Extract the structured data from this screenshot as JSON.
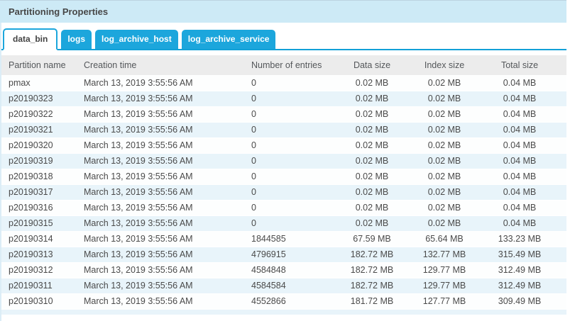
{
  "panel": {
    "title": "Partitioning Properties"
  },
  "tabs": [
    {
      "label": "data_bin",
      "active": true
    },
    {
      "label": "logs",
      "active": false
    },
    {
      "label": "log_archive_host",
      "active": false
    },
    {
      "label": "log_archive_service",
      "active": false
    }
  ],
  "table": {
    "columns": [
      "Partition name",
      "Creation time",
      "Number of entries",
      "Data size",
      "Index size",
      "Total size"
    ],
    "column_keys": [
      "partition-name",
      "creation-time",
      "number-of-entries",
      "data-size",
      "index-size",
      "total-size"
    ],
    "rows": [
      [
        "pmax",
        "March 13, 2019 3:55:56 AM",
        "0",
        "0.02 MB",
        "0.02 MB",
        "0.04 MB"
      ],
      [
        "p20190323",
        "March 13, 2019 3:55:56 AM",
        "0",
        "0.02 MB",
        "0.02 MB",
        "0.04 MB"
      ],
      [
        "p20190322",
        "March 13, 2019 3:55:56 AM",
        "0",
        "0.02 MB",
        "0.02 MB",
        "0.04 MB"
      ],
      [
        "p20190321",
        "March 13, 2019 3:55:56 AM",
        "0",
        "0.02 MB",
        "0.02 MB",
        "0.04 MB"
      ],
      [
        "p20190320",
        "March 13, 2019 3:55:56 AM",
        "0",
        "0.02 MB",
        "0.02 MB",
        "0.04 MB"
      ],
      [
        "p20190319",
        "March 13, 2019 3:55:56 AM",
        "0",
        "0.02 MB",
        "0.02 MB",
        "0.04 MB"
      ],
      [
        "p20190318",
        "March 13, 2019 3:55:56 AM",
        "0",
        "0.02 MB",
        "0.02 MB",
        "0.04 MB"
      ],
      [
        "p20190317",
        "March 13, 2019 3:55:56 AM",
        "0",
        "0.02 MB",
        "0.02 MB",
        "0.04 MB"
      ],
      [
        "p20190316",
        "March 13, 2019 3:55:56 AM",
        "0",
        "0.02 MB",
        "0.02 MB",
        "0.04 MB"
      ],
      [
        "p20190315",
        "March 13, 2019 3:55:56 AM",
        "0",
        "0.02 MB",
        "0.02 MB",
        "0.04 MB"
      ],
      [
        "p20190314",
        "March 13, 2019 3:55:56 AM",
        "1844585",
        "67.59 MB",
        "65.64 MB",
        "133.23 MB"
      ],
      [
        "p20190313",
        "March 13, 2019 3:55:56 AM",
        "4796915",
        "182.72 MB",
        "132.77 MB",
        "315.49 MB"
      ],
      [
        "p20190312",
        "March 13, 2019 3:55:56 AM",
        "4584848",
        "182.72 MB",
        "129.77 MB",
        "312.49 MB"
      ],
      [
        "p20190311",
        "March 13, 2019 3:55:56 AM",
        "4584584",
        "182.72 MB",
        "129.77 MB",
        "312.49 MB"
      ],
      [
        "p20190310",
        "March 13, 2019 3:55:56 AM",
        "4552866",
        "181.72 MB",
        "127.77 MB",
        "309.49 MB"
      ]
    ]
  },
  "colors": {
    "accent_blue": "#1ca6dc",
    "tab_line_blue": "#12a0d7",
    "titlebar_bg": "#cdeaf6",
    "alt_row_bg": "#e8f4fa",
    "header_bg": "#ececec"
  }
}
